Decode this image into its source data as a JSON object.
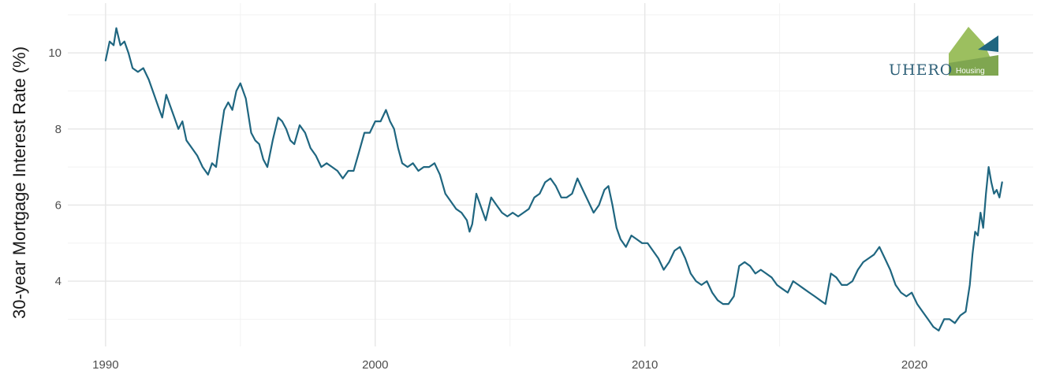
{
  "logo": {
    "text": "UHERO",
    "subtext": "Housing"
  },
  "chart_data": {
    "type": "line",
    "title": "",
    "xlabel": "",
    "ylabel": "30-year Mortgage Interest Rate (%)",
    "xlim": [
      1988.6,
      2024.4
    ],
    "ylim": [
      2.45,
      11.1
    ],
    "x_ticks": [
      1990,
      2000,
      2010,
      2020
    ],
    "y_ticks": [
      4,
      6,
      8,
      10
    ],
    "grid": true,
    "legend": "none",
    "line_color": "#1f6680",
    "series": [
      {
        "x": [
          1990.0,
          1990.15,
          1990.3,
          1990.4,
          1990.55,
          1990.7,
          1990.85,
          1991.0,
          1991.2,
          1991.4,
          1991.6,
          1991.8,
          1992.0,
          1992.1,
          1992.25,
          1992.4,
          1992.55,
          1992.7,
          1992.85,
          1993.0,
          1993.2,
          1993.4,
          1993.6,
          1993.8,
          1993.95,
          1994.1,
          1994.25,
          1994.4,
          1994.55,
          1994.7,
          1994.85,
          1995.0,
          1995.2,
          1995.4,
          1995.55,
          1995.7,
          1995.85,
          1996.0,
          1996.2,
          1996.4,
          1996.55,
          1996.7,
          1996.85,
          1997.0,
          1997.2,
          1997.4,
          1997.6,
          1997.8,
          1998.0,
          1998.2,
          1998.4,
          1998.6,
          1998.8,
          1999.0,
          1999.2,
          1999.4,
          1999.6,
          1999.8,
          2000.0,
          2000.2,
          2000.4,
          2000.55,
          2000.7,
          2000.85,
          2001.0,
          2001.2,
          2001.4,
          2001.6,
          2001.8,
          2002.0,
          2002.2,
          2002.4,
          2002.6,
          2002.8,
          2003.0,
          2003.2,
          2003.4,
          2003.5,
          2003.6,
          2003.75,
          2003.9,
          2004.1,
          2004.3,
          2004.5,
          2004.7,
          2004.9,
          2005.1,
          2005.3,
          2005.5,
          2005.7,
          2005.9,
          2006.1,
          2006.3,
          2006.5,
          2006.7,
          2006.9,
          2007.1,
          2007.3,
          2007.5,
          2007.7,
          2007.9,
          2008.1,
          2008.3,
          2008.5,
          2008.65,
          2008.8,
          2008.95,
          2009.1,
          2009.3,
          2009.5,
          2009.7,
          2009.9,
          2010.1,
          2010.3,
          2010.5,
          2010.7,
          2010.9,
          2011.1,
          2011.3,
          2011.5,
          2011.7,
          2011.9,
          2012.1,
          2012.3,
          2012.5,
          2012.7,
          2012.9,
          2013.1,
          2013.3,
          2013.5,
          2013.7,
          2013.9,
          2014.1,
          2014.3,
          2014.5,
          2014.7,
          2014.9,
          2015.1,
          2015.3,
          2015.5,
          2015.7,
          2015.9,
          2016.1,
          2016.3,
          2016.5,
          2016.7,
          2016.9,
          2017.1,
          2017.3,
          2017.5,
          2017.7,
          2017.9,
          2018.1,
          2018.3,
          2018.5,
          2018.7,
          2018.9,
          2019.1,
          2019.3,
          2019.5,
          2019.7,
          2019.9,
          2020.1,
          2020.3,
          2020.5,
          2020.7,
          2020.9,
          2021.1,
          2021.3,
          2021.5,
          2021.7,
          2021.9,
          2022.05,
          2022.15,
          2022.25,
          2022.35,
          2022.45,
          2022.55,
          2022.65,
          2022.75,
          2022.85,
          2022.95,
          2023.05,
          2023.15,
          2023.25
        ],
        "y": [
          9.8,
          10.3,
          10.2,
          10.65,
          10.2,
          10.3,
          10.0,
          9.6,
          9.5,
          9.6,
          9.3,
          8.9,
          8.5,
          8.3,
          8.9,
          8.6,
          8.3,
          8.0,
          8.2,
          7.7,
          7.5,
          7.3,
          7.0,
          6.8,
          7.1,
          7.0,
          7.8,
          8.5,
          8.7,
          8.5,
          9.0,
          9.2,
          8.8,
          7.9,
          7.7,
          7.6,
          7.2,
          7.0,
          7.7,
          8.3,
          8.2,
          8.0,
          7.7,
          7.6,
          8.1,
          7.9,
          7.5,
          7.3,
          7.0,
          7.1,
          7.0,
          6.9,
          6.7,
          6.9,
          6.9,
          7.4,
          7.9,
          7.9,
          8.2,
          8.2,
          8.5,
          8.2,
          8.0,
          7.5,
          7.1,
          7.0,
          7.1,
          6.9,
          7.0,
          7.0,
          7.1,
          6.8,
          6.3,
          6.1,
          5.9,
          5.8,
          5.6,
          5.3,
          5.5,
          6.3,
          6.0,
          5.6,
          6.2,
          6.0,
          5.8,
          5.7,
          5.8,
          5.7,
          5.8,
          5.9,
          6.2,
          6.3,
          6.6,
          6.7,
          6.5,
          6.2,
          6.2,
          6.3,
          6.7,
          6.4,
          6.1,
          5.8,
          6.0,
          6.4,
          6.5,
          6.0,
          5.4,
          5.1,
          4.9,
          5.2,
          5.1,
          5.0,
          5.0,
          4.8,
          4.6,
          4.3,
          4.5,
          4.8,
          4.9,
          4.6,
          4.2,
          4.0,
          3.9,
          4.0,
          3.7,
          3.5,
          3.4,
          3.4,
          3.6,
          4.4,
          4.5,
          4.4,
          4.2,
          4.3,
          4.2,
          4.1,
          3.9,
          3.8,
          3.7,
          4.0,
          3.9,
          3.8,
          3.7,
          3.6,
          3.5,
          3.4,
          4.2,
          4.1,
          3.9,
          3.9,
          4.0,
          4.3,
          4.5,
          4.6,
          4.7,
          4.9,
          4.6,
          4.3,
          3.9,
          3.7,
          3.6,
          3.7,
          3.4,
          3.2,
          3.0,
          2.8,
          2.7,
          3.0,
          3.0,
          2.9,
          3.1,
          3.2,
          3.9,
          4.7,
          5.3,
          5.2,
          5.8,
          5.4,
          6.3,
          7.0,
          6.6,
          6.3,
          6.4,
          6.2,
          6.6
        ]
      }
    ]
  }
}
